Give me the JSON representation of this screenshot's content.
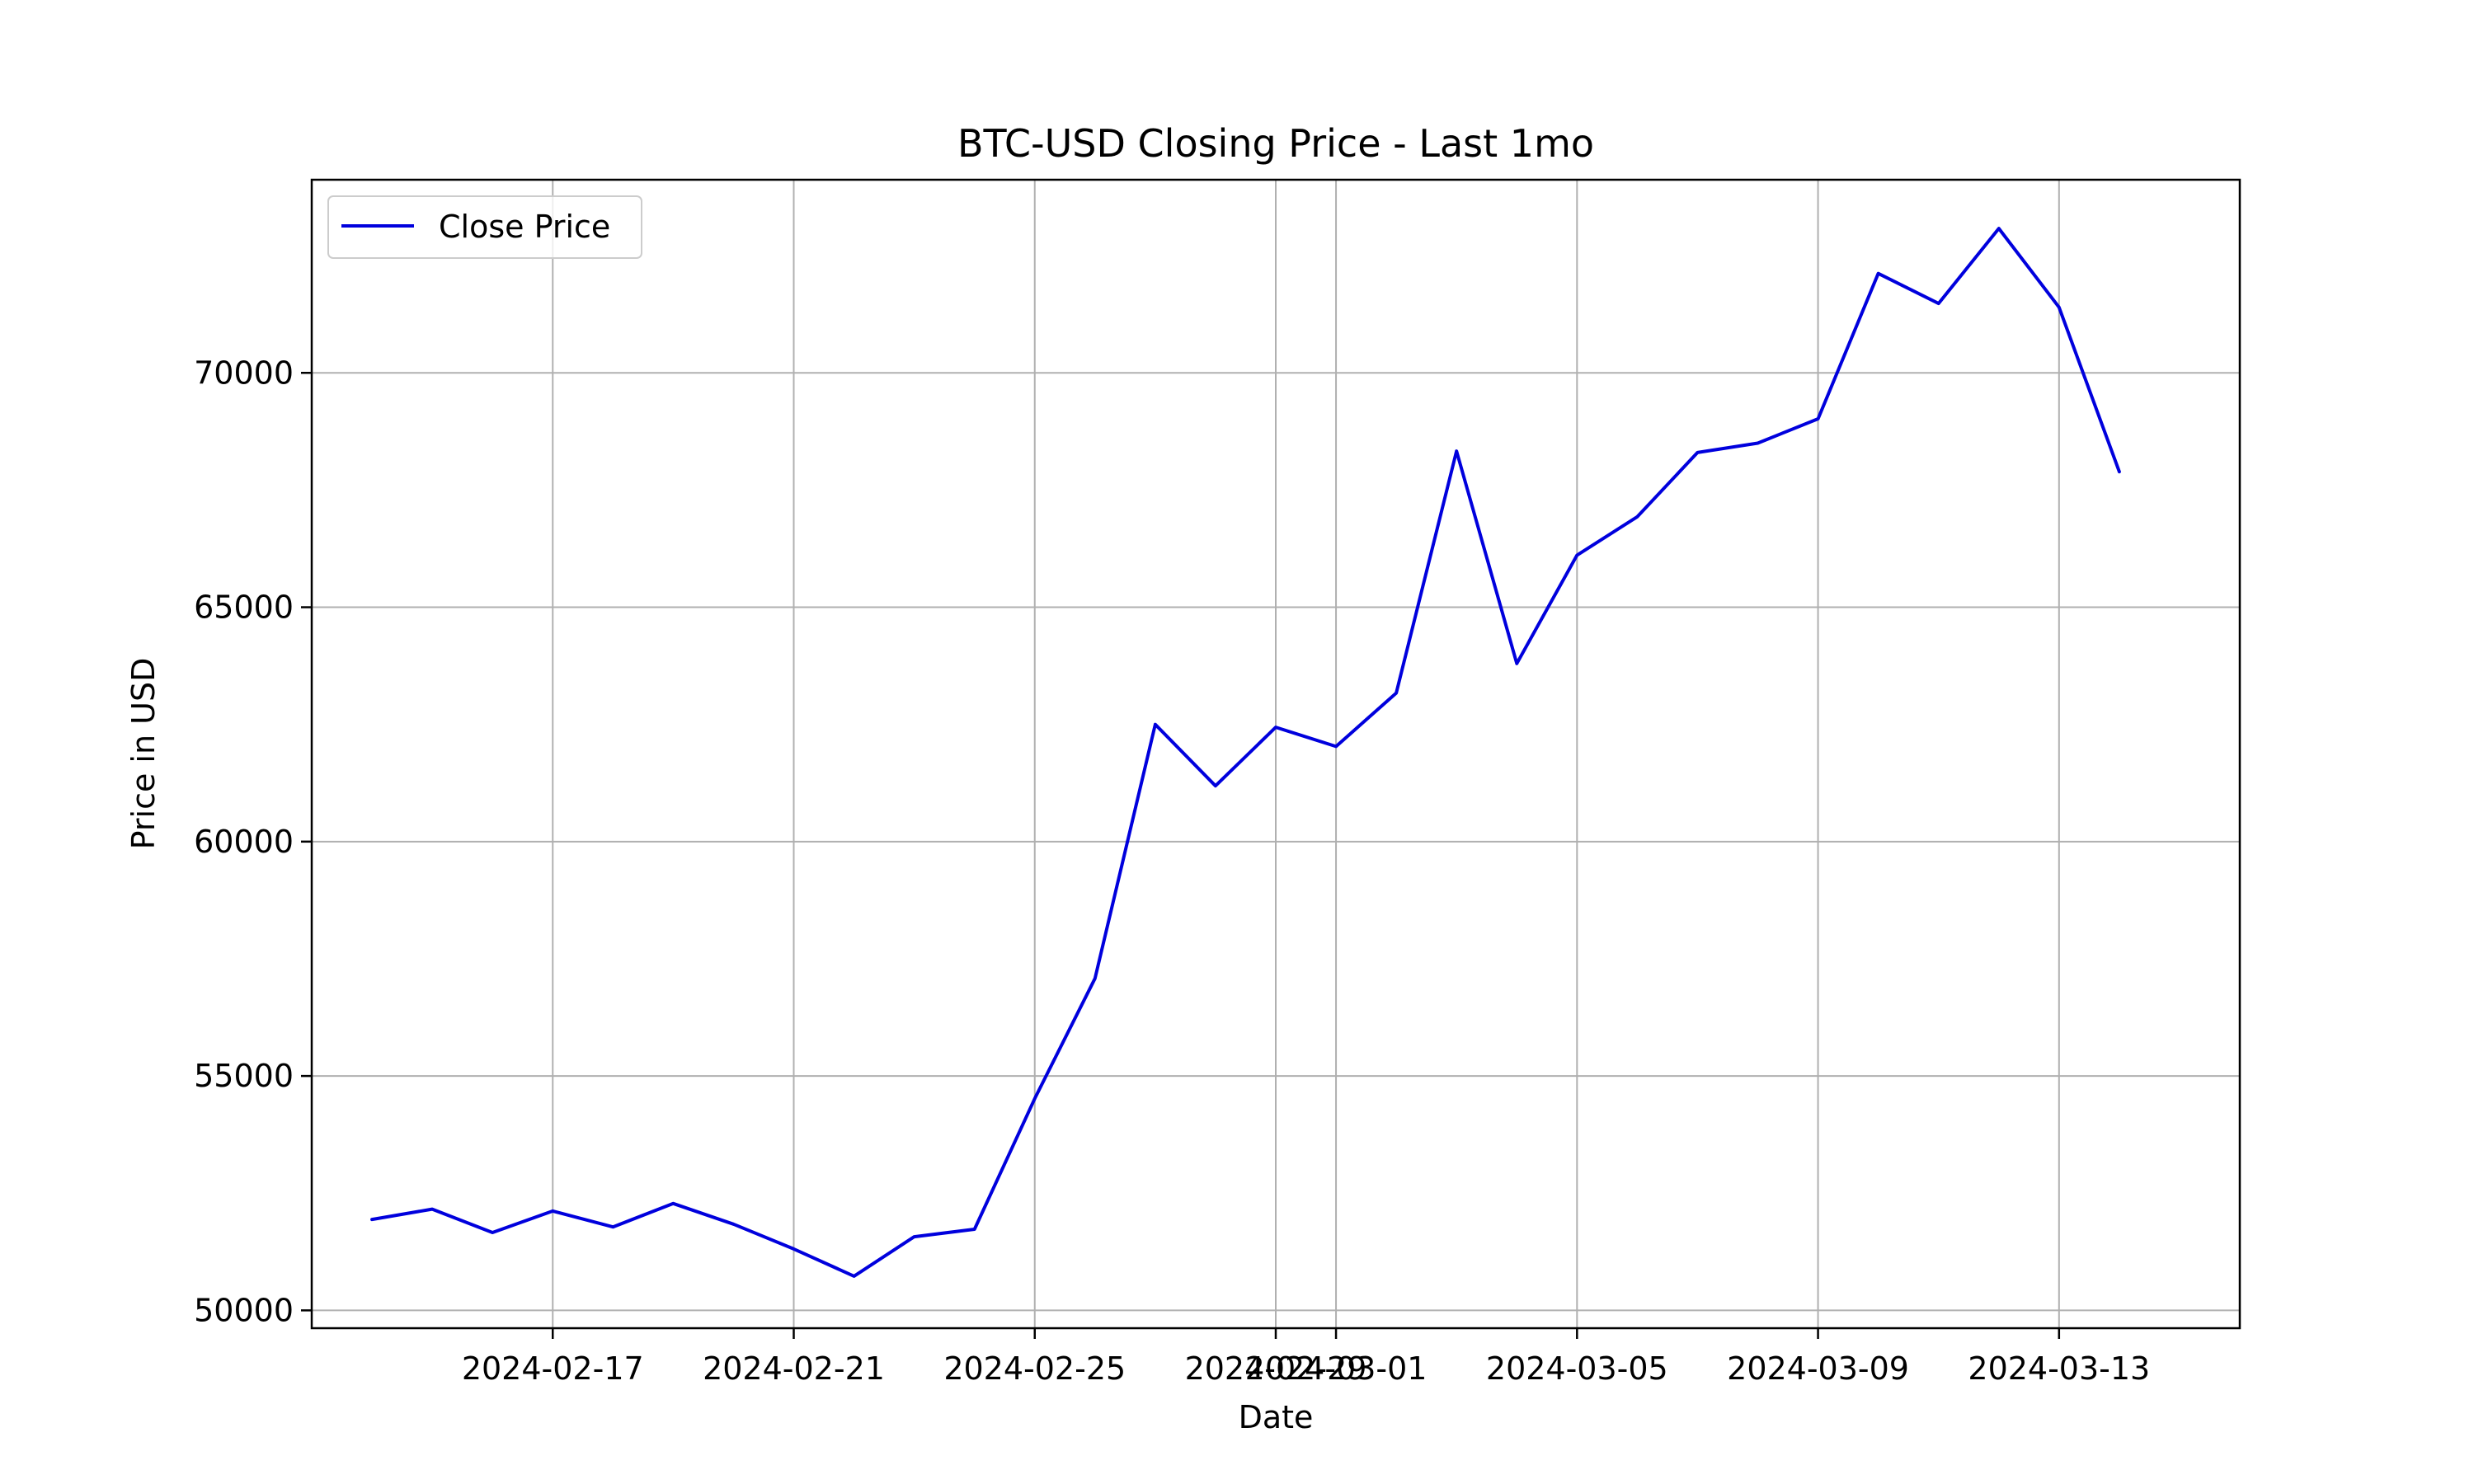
{
  "chart_data": {
    "type": "line",
    "title": "BTC-USD Closing Price - Last 1mo",
    "xlabel": "Date",
    "ylabel": "Price in USD",
    "ylim": [
      49620,
      74120
    ],
    "xlim": [
      "2024-02-13",
      "2024-03-16"
    ],
    "grid": true,
    "legend_position": "top-left",
    "x_ticks": [
      "2024-02-17",
      "2024-02-21",
      "2024-02-25",
      "2024-02-29",
      "2024-03-01",
      "2024-03-05",
      "2024-03-09",
      "2024-03-13"
    ],
    "y_ticks": [
      50000,
      55000,
      60000,
      65000,
      70000
    ],
    "colors": {
      "line": "#0000dd",
      "grid": "#b0b0b0"
    },
    "series": [
      {
        "name": "Close Price",
        "x": [
          "2024-02-14",
          "2024-02-15",
          "2024-02-16",
          "2024-02-17",
          "2024-02-18",
          "2024-02-19",
          "2024-02-20",
          "2024-02-21",
          "2024-02-22",
          "2024-02-23",
          "2024-02-24",
          "2024-02-25",
          "2024-02-26",
          "2024-02-27",
          "2024-02-28",
          "2024-02-29",
          "2024-03-01",
          "2024-03-02",
          "2024-03-03",
          "2024-03-04",
          "2024-03-05",
          "2024-03-06",
          "2024-03-07",
          "2024-03-08",
          "2024-03-09",
          "2024-03-10",
          "2024-03-11",
          "2024-03-12",
          "2024-03-13",
          "2024-03-14",
          "2024-03-15"
        ],
        "values": [
          51940,
          52160,
          51660,
          52120,
          51780,
          52280,
          51840,
          51310,
          50730,
          51570,
          51730,
          54520,
          57080,
          62500,
          61190,
          62440,
          62030,
          63170,
          68330,
          63800,
          66110,
          66930,
          68300,
          68500,
          69020,
          72120,
          71480,
          73080,
          71400,
          67890,
          null
        ]
      }
    ]
  }
}
